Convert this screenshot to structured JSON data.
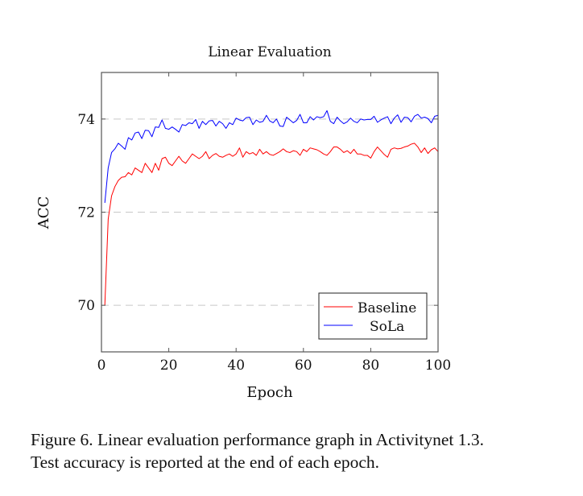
{
  "chart_data": {
    "type": "line",
    "title": "Linear Evaluation",
    "xlabel": "Epoch",
    "ylabel": "ACC",
    "xlim": [
      0,
      100
    ],
    "ylim": [
      69,
      75
    ],
    "xticks": [
      0,
      20,
      40,
      60,
      80,
      100
    ],
    "xtick_labels": [
      "0",
      "20",
      "40",
      "60",
      "80",
      "100"
    ],
    "yticks": [
      70,
      72,
      74
    ],
    "ytick_labels": [
      "70",
      "72",
      "74"
    ],
    "grid": "horizontal dashed at y ticks",
    "legend_position": "bottom-right",
    "series": [
      {
        "name": "Baseline",
        "color": "#ff0000",
        "x": [
          1,
          2,
          3,
          4,
          5,
          6,
          7,
          8,
          9,
          10,
          11,
          12,
          13,
          14,
          15,
          16,
          17,
          18,
          19,
          20,
          21,
          22,
          23,
          24,
          25,
          26,
          27,
          28,
          29,
          30,
          31,
          32,
          33,
          34,
          35,
          36,
          37,
          38,
          39,
          40,
          41,
          42,
          43,
          44,
          45,
          46,
          47,
          48,
          49,
          50,
          51,
          52,
          53,
          54,
          55,
          56,
          57,
          58,
          59,
          60,
          61,
          62,
          63,
          64,
          65,
          66,
          67,
          68,
          69,
          70,
          71,
          72,
          73,
          74,
          75,
          76,
          77,
          78,
          79,
          80,
          81,
          82,
          83,
          84,
          85,
          86,
          87,
          88,
          89,
          90,
          91,
          92,
          93,
          94,
          95,
          96,
          97,
          98,
          99,
          100
        ],
        "values": [
          70.0,
          71.85,
          72.35,
          72.55,
          72.68,
          72.75,
          72.76,
          72.85,
          72.8,
          72.95,
          72.9,
          72.85,
          73.05,
          72.95,
          72.85,
          73.05,
          72.9,
          73.15,
          73.18,
          73.05,
          73.0,
          73.1,
          73.2,
          73.1,
          73.05,
          73.15,
          73.25,
          73.2,
          73.15,
          73.2,
          73.3,
          73.15,
          73.22,
          73.26,
          73.2,
          73.18,
          73.22,
          73.25,
          73.2,
          73.25,
          73.38,
          73.18,
          73.3,
          73.25,
          73.28,
          73.22,
          73.35,
          73.25,
          73.3,
          73.24,
          73.22,
          73.26,
          73.3,
          73.36,
          73.3,
          73.28,
          73.32,
          73.3,
          73.22,
          73.35,
          73.3,
          73.38,
          73.36,
          73.34,
          73.3,
          73.25,
          73.22,
          73.3,
          73.4,
          73.4,
          73.35,
          73.28,
          73.32,
          73.26,
          73.35,
          73.25,
          73.25,
          73.22,
          73.22,
          73.16,
          73.3,
          73.4,
          73.32,
          73.24,
          73.18,
          73.35,
          73.38,
          73.36,
          73.37,
          73.4,
          73.42,
          73.46,
          73.48,
          73.4,
          73.28,
          73.38,
          73.26,
          73.34,
          73.38,
          73.3
        ]
      },
      {
        "name": "SoLa",
        "color": "#0000ff",
        "x": [
          1,
          2,
          3,
          4,
          5,
          6,
          7,
          8,
          9,
          10,
          11,
          12,
          13,
          14,
          15,
          16,
          17,
          18,
          19,
          20,
          21,
          22,
          23,
          24,
          25,
          26,
          27,
          28,
          29,
          30,
          31,
          32,
          33,
          34,
          35,
          36,
          37,
          38,
          39,
          40,
          41,
          42,
          43,
          44,
          45,
          46,
          47,
          48,
          49,
          50,
          51,
          52,
          53,
          54,
          55,
          56,
          57,
          58,
          59,
          60,
          61,
          62,
          63,
          64,
          65,
          66,
          67,
          68,
          69,
          70,
          71,
          72,
          73,
          74,
          75,
          76,
          77,
          78,
          79,
          80,
          81,
          82,
          83,
          84,
          85,
          86,
          87,
          88,
          89,
          90,
          91,
          92,
          93,
          94,
          95,
          96,
          97,
          98,
          99,
          100
        ],
        "values": [
          72.2,
          72.95,
          73.28,
          73.36,
          73.48,
          73.42,
          73.35,
          73.6,
          73.55,
          73.7,
          73.72,
          73.58,
          73.76,
          73.75,
          73.62,
          73.83,
          73.82,
          73.98,
          73.8,
          73.78,
          73.83,
          73.78,
          73.72,
          73.88,
          73.86,
          73.92,
          73.9,
          73.99,
          73.8,
          73.95,
          73.88,
          73.96,
          73.97,
          73.85,
          73.95,
          73.9,
          73.8,
          73.92,
          73.88,
          74.02,
          73.98,
          73.96,
          74.03,
          74.04,
          73.88,
          73.98,
          73.93,
          73.95,
          74.08,
          73.96,
          73.92,
          74.0,
          73.85,
          73.84,
          74.04,
          73.98,
          73.92,
          73.97,
          74.1,
          73.92,
          73.92,
          74.05,
          73.98,
          74.05,
          74.03,
          74.05,
          74.18,
          73.95,
          73.9,
          74.04,
          73.96,
          73.9,
          73.94,
          74.02,
          73.95,
          73.92,
          74.0,
          73.98,
          73.99,
          73.99,
          74.06,
          73.93,
          73.98,
          74.02,
          74.05,
          73.9,
          74.02,
          74.09,
          73.93,
          74.04,
          74.03,
          73.94,
          74.06,
          74.1,
          74.02,
          74.04,
          74.01,
          73.92,
          74.06,
          74.08
        ]
      }
    ]
  },
  "caption": {
    "line1": "Figure 6. Linear evaluation performance graph in Activitynet 1.3.",
    "line2": "Test accuracy is reported at the end of each epoch."
  }
}
